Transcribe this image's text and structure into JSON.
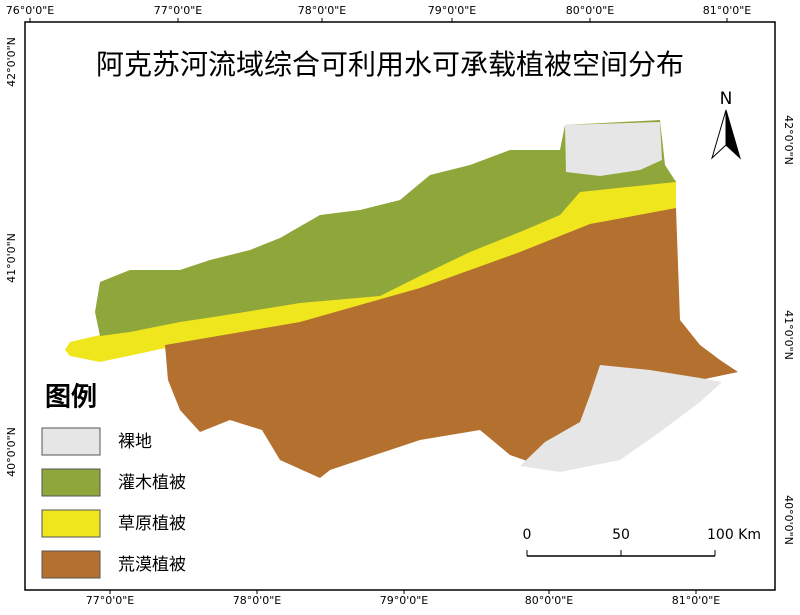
{
  "title": "阿克苏河流域综合可利用水可承载植被空间分布",
  "north": "N",
  "top_ticks": [
    "76°0'0\"E",
    "77°0'0\"E",
    "78°0'0\"E",
    "79°0'0\"E",
    "80°0'0\"E",
    "81°0'0\"E"
  ],
  "bottom_ticks": [
    "77°0'0\"E",
    "78°0'0\"E",
    "79°0'0\"E",
    "80°0'0\"E",
    "81°0'0\"E"
  ],
  "left_ticks": [
    "42°0'0\"N",
    "41°0'0\"N",
    "40°0'0\"N"
  ],
  "right_ticks": [
    "42°0'0\"N",
    "41°0'0\"N",
    "40°0'0\"N"
  ],
  "legend": {
    "title": "图例",
    "items": [
      {
        "label": "裸地",
        "color": "#e6e6e6"
      },
      {
        "label": "灌木植被",
        "color": "#8fa63a"
      },
      {
        "label": "草原植被",
        "color": "#f0e61e"
      },
      {
        "label": "荒漠植被",
        "color": "#b4702f"
      }
    ]
  },
  "scale_bar": [
    "0",
    "50",
    "100 Km"
  ]
}
